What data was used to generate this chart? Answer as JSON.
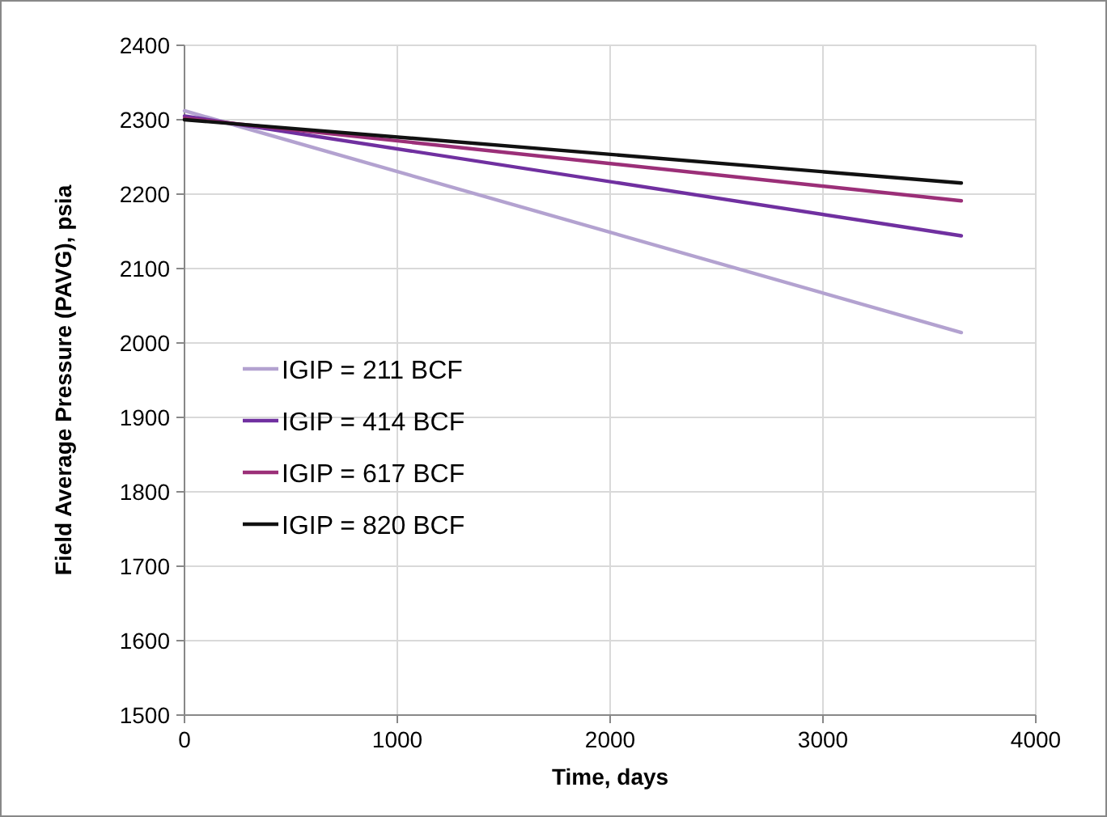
{
  "chart_data": {
    "type": "line",
    "xlabel": "Time, days",
    "ylabel": "Field Average Pressure (PAVG), psia",
    "x": [
      0,
      3650
    ],
    "series": [
      {
        "name": "IGIP = 211 BCF",
        "color": "#b3a2d0",
        "values": [
          2312,
          2014
        ]
      },
      {
        "name": "IGIP = 414 BCF",
        "color": "#7030a0",
        "values": [
          2305,
          2144
        ]
      },
      {
        "name": "IGIP = 617 BCF",
        "color": "#9b2f78",
        "values": [
          2302,
          2191
        ]
      },
      {
        "name": "IGIP = 820 BCF",
        "color": "#111111",
        "values": [
          2300,
          2215
        ]
      }
    ],
    "xlim": [
      0,
      4000
    ],
    "xticks": [
      0,
      1000,
      2000,
      3000,
      4000
    ],
    "ylim": [
      1500,
      2400
    ],
    "yticks": [
      1500,
      1600,
      1700,
      1800,
      1900,
      2000,
      2100,
      2200,
      2300,
      2400
    ],
    "grid": true,
    "legend": "left",
    "marker": "none",
    "line_style": "solid"
  }
}
